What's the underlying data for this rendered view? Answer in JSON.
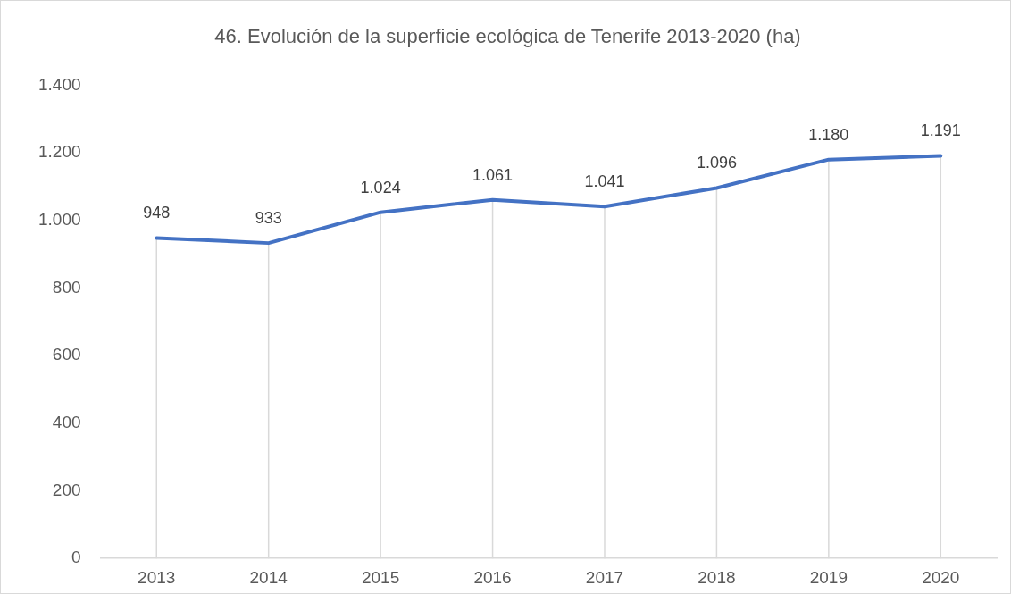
{
  "chart_data": {
    "type": "line",
    "title": "46. Evolución de la superficie ecológica de Tenerife 2013-2020 (ha)",
    "categories": [
      "2013",
      "2014",
      "2015",
      "2016",
      "2017",
      "2018",
      "2019",
      "2020"
    ],
    "series": [
      {
        "color": "#4472c4",
        "values": [
          948,
          933,
          1024,
          1061,
          1041,
          1096,
          1180,
          1191
        ],
        "value_labels": [
          "948",
          "933",
          "1.024",
          "1.061",
          "1.041",
          "1.096",
          "1.180",
          "1.191"
        ]
      }
    ],
    "ylim": [
      0,
      1400
    ],
    "yticks": [
      0,
      200,
      400,
      600,
      800,
      {
        "value": 1000,
        "label": "1.000"
      },
      {
        "value": 1200,
        "label": "1.200"
      },
      {
        "value": 1400,
        "label": "1.400"
      }
    ],
    "grid": "x",
    "legend": false,
    "marker": "none",
    "line_style": "solid"
  }
}
